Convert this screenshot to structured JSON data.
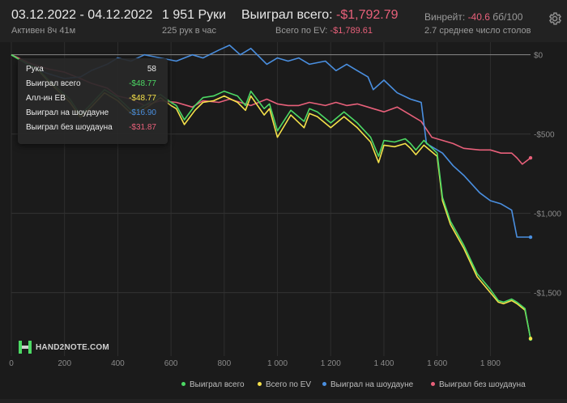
{
  "header": {
    "date_range": "03.12.2022 - 04.12.2022",
    "active_time": "Активен 8ч 41м",
    "hands": "1 951 Руки",
    "hands_per_hour": "225 рук в час",
    "won_total_label": "Выиграл всего:",
    "won_total_value": "-$1,792.79",
    "ev_label": "Всего по EV:",
    "ev_value": "-$1,789.61",
    "winrate_label": "Винрейт:",
    "winrate_value": "-40.6",
    "winrate_unit": "бб/100",
    "tables_text": "2.7 среднее число столов"
  },
  "tooltip": {
    "hand_label": "Рука",
    "hand_value": "58",
    "rows": [
      {
        "label": "Выиграл всего",
        "value": "-$48.77",
        "color": "#4cd964"
      },
      {
        "label": "Алл-ин EB",
        "value": "-$48.77",
        "color": "#f5e14a"
      },
      {
        "label": "Выиграл на шоудауне",
        "value": "-$16.90",
        "color": "#4a8fe0"
      },
      {
        "label": "Выиграл без шоудауна",
        "value": "-$31.87",
        "color": "#e8607a"
      }
    ]
  },
  "logo": {
    "text": "HAND2NOTE.COM"
  },
  "chart_data": {
    "type": "line",
    "xlim": [
      0,
      1951
    ],
    "ylim": [
      -1900,
      80
    ],
    "x_ticks": [
      0,
      200,
      400,
      600,
      800,
      1000,
      1200,
      1400,
      1600,
      1800
    ],
    "x_tick_labels": [
      "0",
      "200",
      "400",
      "600",
      "800",
      "1 000",
      "1 200",
      "1 400",
      "1 600",
      "1 800"
    ],
    "y_ticks": [
      0,
      -500,
      -1000,
      -1500
    ],
    "y_tick_labels": [
      "$0",
      "-$500",
      "-$1,000",
      "-$1,500"
    ],
    "grid": true,
    "legend_position": "bottom",
    "series": [
      {
        "name": "Выиграл всего",
        "color": "#4cd964",
        "x": [
          0,
          30,
          60,
          100,
          140,
          180,
          220,
          260,
          300,
          350,
          400,
          450,
          480,
          520,
          560,
          600,
          620,
          650,
          690,
          720,
          760,
          800,
          850,
          880,
          900,
          950,
          970,
          1000,
          1050,
          1100,
          1120,
          1150,
          1200,
          1250,
          1300,
          1350,
          1380,
          1400,
          1440,
          1480,
          1500,
          1520,
          1550,
          1600,
          1620,
          1650,
          1700,
          1750,
          1800,
          1830,
          1850,
          1880,
          1900,
          1930,
          1951
        ],
        "y": [
          0,
          -30,
          -55,
          -90,
          -160,
          -220,
          -280,
          -380,
          -310,
          -220,
          -270,
          -350,
          -340,
          -300,
          -250,
          -300,
          -320,
          -410,
          -320,
          -270,
          -260,
          -230,
          -260,
          -320,
          -230,
          -340,
          -310,
          -480,
          -350,
          -420,
          -340,
          -360,
          -430,
          -360,
          -430,
          -520,
          -640,
          -540,
          -550,
          -530,
          -560,
          -600,
          -540,
          -620,
          -900,
          -1050,
          -1200,
          -1380,
          -1480,
          -1550,
          -1560,
          -1540,
          -1560,
          -1600,
          -1792.79
        ]
      },
      {
        "name": "Всего по EV",
        "color": "#f5e14a",
        "x": [
          0,
          30,
          60,
          100,
          140,
          180,
          220,
          260,
          300,
          350,
          400,
          450,
          480,
          520,
          560,
          600,
          620,
          650,
          690,
          720,
          760,
          800,
          850,
          880,
          900,
          950,
          970,
          1000,
          1050,
          1100,
          1120,
          1150,
          1200,
          1250,
          1300,
          1350,
          1380,
          1400,
          1440,
          1480,
          1500,
          1520,
          1550,
          1600,
          1620,
          1650,
          1700,
          1750,
          1800,
          1830,
          1850,
          1880,
          1900,
          1930,
          1951
        ],
        "y": [
          0,
          -30,
          -55,
          -95,
          -170,
          -235,
          -300,
          -395,
          -330,
          -240,
          -290,
          -370,
          -360,
          -320,
          -270,
          -320,
          -340,
          -440,
          -350,
          -300,
          -290,
          -260,
          -300,
          -350,
          -260,
          -380,
          -340,
          -520,
          -380,
          -460,
          -370,
          -390,
          -460,
          -390,
          -460,
          -550,
          -680,
          -570,
          -580,
          -560,
          -590,
          -630,
          -570,
          -640,
          -920,
          -1070,
          -1220,
          -1400,
          -1500,
          -1560,
          -1570,
          -1550,
          -1570,
          -1610,
          -1789.61
        ]
      },
      {
        "name": "Выиграл на шоудауне",
        "color": "#4a8fe0",
        "x": [
          0,
          40,
          80,
          140,
          200,
          260,
          300,
          360,
          400,
          450,
          500,
          560,
          620,
          680,
          720,
          780,
          820,
          860,
          900,
          960,
          1000,
          1040,
          1080,
          1120,
          1180,
          1220,
          1260,
          1300,
          1340,
          1360,
          1400,
          1450,
          1500,
          1540,
          1560,
          1580,
          1620,
          1660,
          1700,
          1760,
          1800,
          1840,
          1880,
          1900,
          1951
        ],
        "y": [
          0,
          -40,
          -80,
          -120,
          -150,
          -140,
          -100,
          -60,
          -20,
          -40,
          0,
          -20,
          -40,
          0,
          -20,
          30,
          60,
          0,
          40,
          -60,
          -20,
          -40,
          -20,
          -60,
          -40,
          -100,
          -60,
          -100,
          -140,
          -220,
          -160,
          -240,
          -280,
          -300,
          -560,
          -580,
          -620,
          -700,
          -760,
          -870,
          -920,
          -940,
          -980,
          -1150,
          -1150
        ]
      },
      {
        "name": "Выиграл без шоудауна",
        "color": "#e8607a",
        "x": [
          0,
          40,
          80,
          140,
          200,
          260,
          300,
          360,
          400,
          450,
          500,
          560,
          620,
          680,
          720,
          780,
          820,
          860,
          900,
          960,
          1000,
          1040,
          1080,
          1120,
          1180,
          1220,
          1260,
          1300,
          1340,
          1360,
          1400,
          1450,
          1500,
          1540,
          1560,
          1580,
          1620,
          1660,
          1700,
          1760,
          1800,
          1840,
          1880,
          1900,
          1920,
          1951
        ],
        "y": [
          0,
          -30,
          -60,
          -90,
          -110,
          -150,
          -180,
          -210,
          -260,
          -280,
          -320,
          -290,
          -300,
          -330,
          -290,
          -300,
          -280,
          -300,
          -320,
          -280,
          -310,
          -320,
          -320,
          -300,
          -320,
          -300,
          -320,
          -310,
          -330,
          -340,
          -360,
          -330,
          -380,
          -420,
          -470,
          -520,
          -540,
          -560,
          -590,
          -600,
          -600,
          -620,
          -620,
          -650,
          -690,
          -650
        ]
      }
    ]
  }
}
